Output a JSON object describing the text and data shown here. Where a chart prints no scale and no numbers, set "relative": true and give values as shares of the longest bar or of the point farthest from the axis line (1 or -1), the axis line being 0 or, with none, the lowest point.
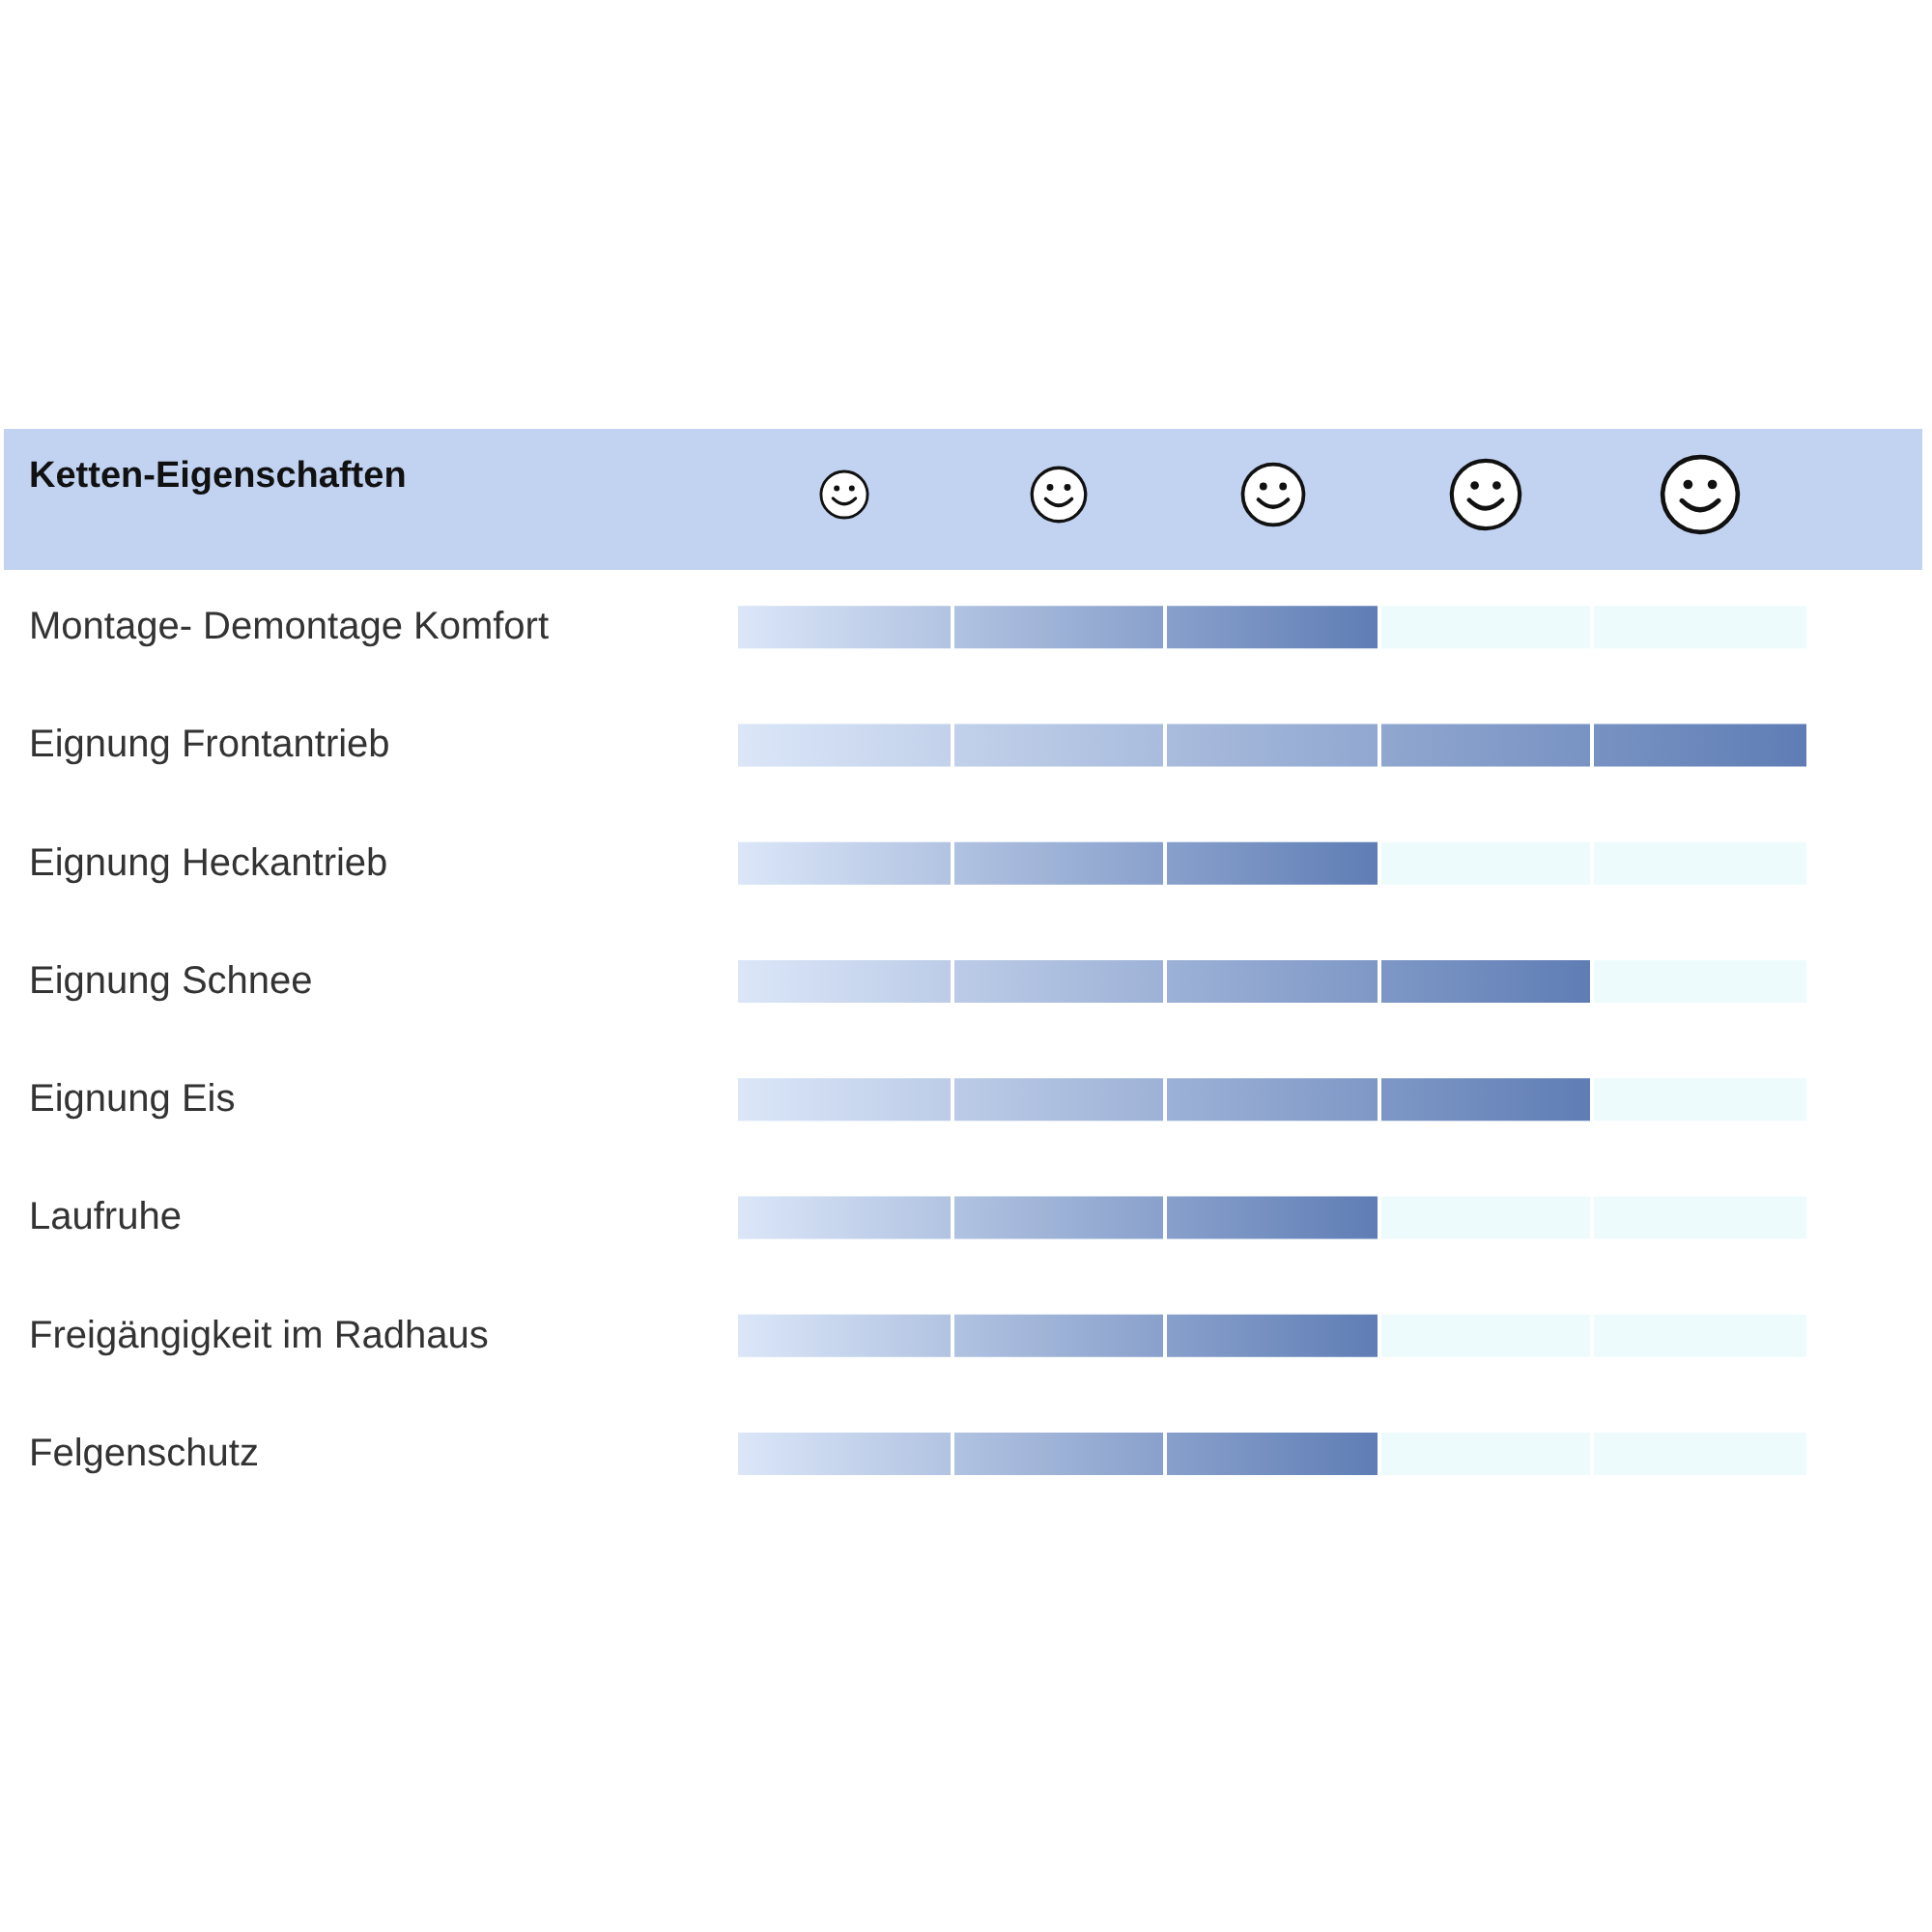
{
  "chart_data": {
    "type": "bar",
    "orientation": "horizontal",
    "relative": true,
    "title": "Ketten-Eigenschaften",
    "categories": [
      "Montage- Demontage Komfort",
      "Eignung Frontantrieb",
      "Eignung Heckantrieb",
      "Eignung Schnee",
      "Eignung Eis",
      "Laufruhe",
      "Freigängigkeit im Radhaus",
      "Felgenschutz"
    ],
    "values": [
      0.6,
      1,
      0.6,
      0.8,
      0.8,
      0.6,
      0.6,
      0.6
    ],
    "color": "#5f7db5"
  }
}
